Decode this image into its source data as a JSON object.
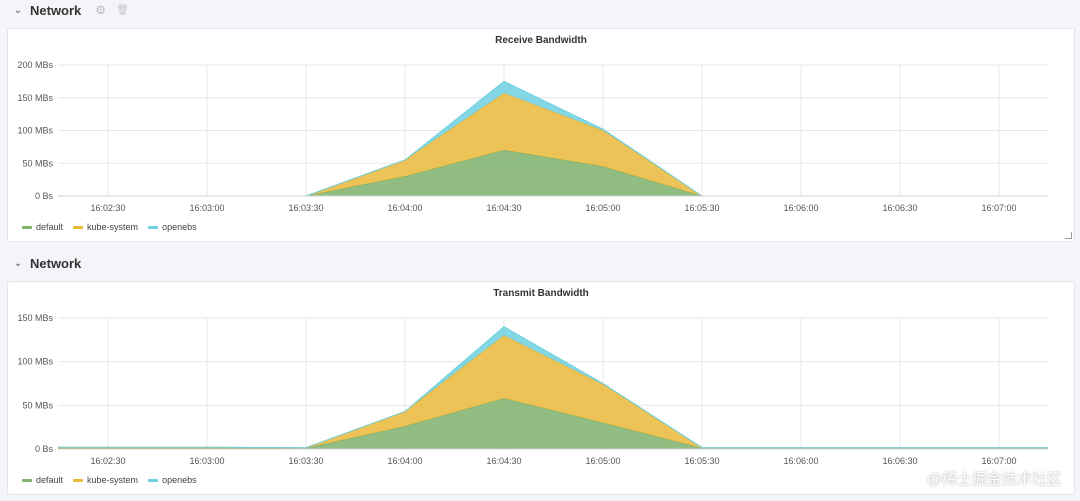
{
  "rows": [
    {
      "title": "Network",
      "gear_icon": "gear-icon",
      "trash_icon": "trash-icon"
    },
    {
      "title": "Network"
    }
  ],
  "colors": {
    "default": "#7eb26d",
    "kube-system": "#eab839",
    "openebs": "#6ed0e0"
  },
  "watermark": "@稀土掘金技术社区",
  "chart_data": [
    {
      "type": "area",
      "title": "Receive Bandwidth",
      "ylim": [
        0,
        200
      ],
      "yticks": [
        0,
        50,
        100,
        150,
        200
      ],
      "ytick_labels": [
        "0 Bs",
        "50 MBs",
        "100 MBs",
        "150 MBs",
        "200 MBs"
      ],
      "x": [
        "16:02:30",
        "16:03:00",
        "16:03:30",
        "16:04:00",
        "16:04:30",
        "16:05:00",
        "16:05:30",
        "16:06:00",
        "16:06:30",
        "16:07:00"
      ],
      "stacked": true,
      "series": [
        {
          "name": "default",
          "values": [
            0,
            0,
            0,
            30,
            70,
            45,
            0,
            0,
            0,
            0
          ]
        },
        {
          "name": "kube-system",
          "values": [
            0,
            0,
            0,
            25,
            87,
            55,
            0,
            0,
            0,
            0
          ]
        },
        {
          "name": "openebs",
          "values": [
            0,
            0,
            0,
            0,
            18,
            2,
            0,
            0,
            0,
            0
          ]
        }
      ],
      "legend": [
        "default",
        "kube-system",
        "openebs"
      ]
    },
    {
      "type": "area",
      "title": "Transmit Bandwidth",
      "ylim": [
        0,
        150
      ],
      "yticks": [
        0,
        50,
        100,
        150
      ],
      "ytick_labels": [
        "0 Bs",
        "50 MBs",
        "100 MBs",
        "150 MBs"
      ],
      "x": [
        "16:02:30",
        "16:03:00",
        "16:03:30",
        "16:04:00",
        "16:04:30",
        "16:05:00",
        "16:05:30",
        "16:06:00",
        "16:06:30",
        "16:07:00"
      ],
      "stacked": true,
      "series": [
        {
          "name": "default",
          "values": [
            1,
            1,
            1,
            26,
            58,
            30,
            1,
            1,
            1,
            1
          ]
        },
        {
          "name": "kube-system",
          "values": [
            1,
            1,
            0.5,
            17,
            72,
            44,
            0.5,
            0.5,
            0.5,
            0.5
          ]
        },
        {
          "name": "openebs",
          "values": [
            0,
            0,
            0,
            0,
            10,
            1,
            0,
            0,
            0,
            0
          ]
        }
      ],
      "legend": [
        "default",
        "kube-system",
        "openebs"
      ]
    }
  ]
}
